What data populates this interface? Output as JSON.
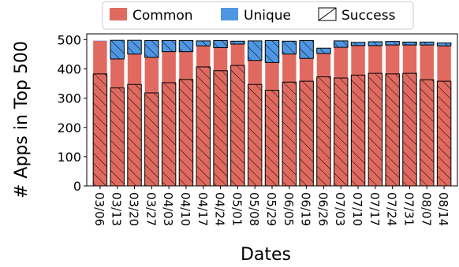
{
  "chart_data": {
    "type": "bar",
    "stacked": true,
    "xlabel": "Dates",
    "ylabel": "# Apps in Top 500",
    "ylim": [
      0,
      520
    ],
    "yticks": [
      0,
      100,
      200,
      300,
      400,
      500
    ],
    "categories": [
      "03/06",
      "03/13",
      "03/20",
      "03/27",
      "04/03",
      "04/10",
      "04/17",
      "04/24",
      "05/01",
      "05/08",
      "05/29",
      "06/05",
      "06/19",
      "06/26",
      "07/03",
      "07/10",
      "07/17",
      "07/24",
      "07/31",
      "08/07",
      "08/14"
    ],
    "series": [
      {
        "name": "Common",
        "color": "#e06a60",
        "values": [
          496,
          434,
          451,
          440,
          459,
          459,
          479,
          473,
          485,
          429,
          422,
          451,
          436,
          453,
          474,
          480,
          480,
          482,
          482,
          482,
          479
        ]
      },
      {
        "name": "Unique",
        "color": "#4f97e3",
        "values": [
          1,
          64,
          47,
          57,
          38,
          38,
          17,
          24,
          10,
          67,
          75,
          44,
          61,
          18,
          22,
          11,
          13,
          12,
          10,
          10,
          10
        ]
      }
    ],
    "success": [
      383,
      335,
      347,
      318,
      353,
      364,
      407,
      394,
      412,
      347,
      327,
      355,
      358,
      373,
      369,
      379,
      385,
      383,
      385,
      363,
      358
    ],
    "success_fill_color": "#ffffff",
    "success_label": "Success",
    "grid": false,
    "legend": "top-center, outside"
  }
}
